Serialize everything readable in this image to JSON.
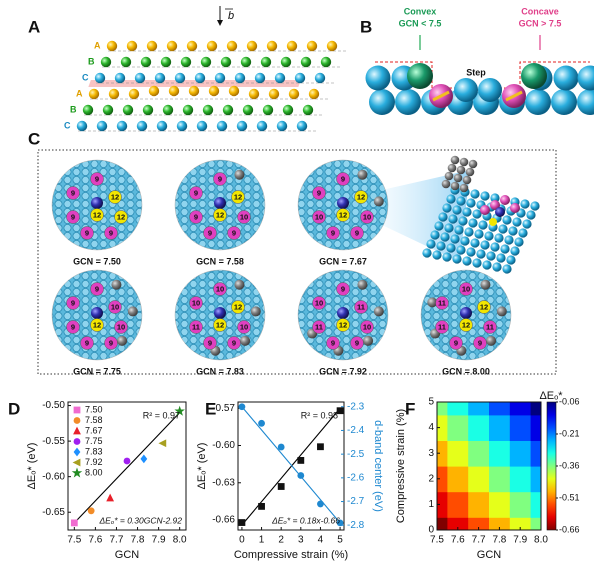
{
  "panels": {
    "A": {
      "label": "A",
      "layers": [
        "A",
        "B",
        "C",
        "A",
        "B",
        "C"
      ],
      "vector": "b"
    },
    "B": {
      "label": "B",
      "convex": "Convex",
      "convex_gcn": "GCN < 7.5",
      "concave": "Concave",
      "concave_gcn": "GCN > 7.5",
      "step": "Step"
    },
    "C": {
      "label": "C",
      "sites": [
        {
          "gcn": "GCN = 7.50",
          "numbers": [
            "9",
            "9",
            "12",
            "9",
            "12",
            "12",
            "9",
            "9"
          ]
        },
        {
          "gcn": "GCN = 7.58",
          "numbers": [
            "9",
            "9",
            "12",
            "9",
            "12",
            "10",
            "9",
            "9"
          ]
        },
        {
          "gcn": "GCN = 7.67",
          "numbers": [
            "9",
            "9",
            "12",
            "10",
            "12",
            "10",
            "9",
            "9"
          ]
        },
        {
          "gcn": "GCN = 7.75",
          "numbers": [
            "9",
            "9",
            "10",
            "9",
            "12",
            "10",
            "9",
            "9"
          ]
        },
        {
          "gcn": "GCN = 7.83",
          "numbers": [
            "10",
            "10",
            "12",
            "11",
            "12",
            "10",
            "9",
            "9"
          ]
        },
        {
          "gcn": "GCN = 7.92",
          "numbers": [
            "9",
            "10",
            "11",
            "11",
            "12",
            "10",
            "9",
            "9"
          ]
        },
        {
          "gcn": "GCN = 8.00",
          "numbers": [
            "10",
            "11",
            "12",
            "11",
            "12",
            "11",
            "9",
            "9"
          ]
        }
      ]
    },
    "D": {
      "label": "D"
    },
    "E": {
      "label": "E"
    },
    "F": {
      "label": "F"
    }
  },
  "chart_data": [
    {
      "type": "scatter",
      "xlabel": "GCN",
      "ylabel": "ΔEₒ* (eV)",
      "xlim": [
        7.47,
        8.03
      ],
      "xticks": [
        7.5,
        7.6,
        7.7,
        7.8,
        7.9,
        {
          "value": 8,
          "label": "8.0"
        }
      ],
      "ylim": [
        -0.675,
        -0.495
      ],
      "yticks": [
        -0.65,
        {
          "value": -0.6,
          "label": "-0.60"
        },
        -0.55,
        {
          "value": -0.5,
          "label": "-0.50"
        }
      ],
      "legend": "upper left",
      "series": [
        {
          "name": "7.50",
          "color": "#f06bd0",
          "marker": "square",
          "x": [
            7.5
          ],
          "values": [
            -0.665
          ]
        },
        {
          "name": "7.58",
          "color": "#f28c28",
          "marker": "circle",
          "x": [
            7.58
          ],
          "values": [
            -0.648
          ]
        },
        {
          "name": "7.67",
          "color": "#e8202a",
          "marker": "triangle",
          "x": [
            7.67
          ],
          "values": [
            -0.63
          ]
        },
        {
          "name": "7.75",
          "color": "#a020f0",
          "marker": "circle",
          "x": [
            7.75
          ],
          "values": [
            -0.578
          ]
        },
        {
          "name": "7.83",
          "color": "#1e90ff",
          "marker": "diamond",
          "x": [
            7.83
          ],
          "values": [
            -0.575
          ]
        },
        {
          "name": "7.92",
          "color": "#a8a020",
          "marker": "triangle-left",
          "x": [
            7.92
          ],
          "values": [
            -0.553
          ]
        },
        {
          "name": "8.00",
          "color": "#228b22",
          "marker": "star",
          "x": [
            8.0
          ],
          "values": [
            -0.508
          ]
        }
      ],
      "fit_lines": [
        {
          "color": "#000000",
          "x": [
            7.5,
            8.0
          ],
          "values": [
            -0.665,
            -0.51
          ]
        }
      ],
      "r_squared": "R² = 0.97",
      "fit_label": "ΔEₒ* = 0.30GCN-2.92"
    },
    {
      "type": "scatter",
      "xlabel": "Compressive strain (%)",
      "ylabel": "ΔEₒ* (eV)",
      "y2label": "d-band center (eV)",
      "y2color": "#1e88d0",
      "xlim": [
        -0.2,
        5.2
      ],
      "xticks": [
        0,
        1,
        2,
        3,
        4,
        5
      ],
      "ylim": [
        -0.668,
        -0.565
      ],
      "yticks": [
        -0.57,
        {
          "value": -0.6,
          "label": "-0.60"
        },
        -0.63,
        -0.66
      ],
      "y2lim": [
        -2.82,
        -2.28
      ],
      "y2ticks": [
        -2.3,
        -2.4,
        -2.5,
        -2.6,
        -2.7,
        -2.8
      ],
      "series": [
        {
          "color": "#111111",
          "marker": "square",
          "x": [
            0,
            1,
            2,
            3,
            4,
            5
          ],
          "values": [
            -0.662,
            -0.649,
            -0.633,
            -0.612,
            -0.601,
            -0.572
          ]
        },
        {
          "color": "#1e88d0",
          "marker": "circle",
          "axis": "y2",
          "x": [
            0,
            1,
            2,
            3,
            4,
            5
          ],
          "values": [
            -2.3,
            -2.37,
            -2.47,
            -2.59,
            -2.71,
            -2.79
          ]
        }
      ],
      "fit_lines": [
        {
          "color": "#000000",
          "x": [
            0,
            5
          ],
          "values": [
            -0.664,
            -0.57
          ]
        },
        {
          "color": "#1e88d0",
          "axis": "y2",
          "x": [
            0,
            5
          ],
          "values": [
            -2.3,
            -2.79
          ]
        }
      ],
      "r_squared": "R² = 0.98",
      "fit_label": "ΔEₒ* = 0.18x-0.66"
    },
    {
      "type": "heatmap",
      "xlabel": "GCN",
      "ylabel": "Compressive strain (%)",
      "colorbar_label": "ΔEₒ*",
      "colormap": "jet_r",
      "xlim": [
        7.5,
        8.0
      ],
      "xticks": [
        7.5,
        7.6,
        7.7,
        7.8,
        7.9,
        {
          "value": 8,
          "label": "8.0"
        }
      ],
      "ylim": [
        0,
        5
      ],
      "yticks": [
        0,
        1,
        2,
        3,
        4,
        5
      ],
      "x": [
        7.5,
        7.6,
        7.7,
        7.8,
        7.9,
        8.0
      ],
      "y": [
        0,
        1,
        2,
        3,
        4,
        5
      ],
      "z": [
        [
          -0.66,
          -0.6,
          -0.54,
          -0.48,
          -0.42,
          -0.36
        ],
        [
          -0.6,
          -0.54,
          -0.48,
          -0.42,
          -0.36,
          -0.3
        ],
        [
          -0.54,
          -0.48,
          -0.42,
          -0.36,
          -0.3,
          -0.24
        ],
        [
          -0.48,
          -0.42,
          -0.36,
          -0.3,
          -0.24,
          -0.18
        ],
        [
          -0.42,
          -0.36,
          -0.3,
          -0.24,
          -0.18,
          -0.12
        ],
        [
          -0.36,
          -0.3,
          -0.24,
          -0.18,
          -0.12,
          -0.06
        ]
      ],
      "clim": [
        -0.66,
        -0.06
      ],
      "cticks": [
        -0.06,
        -0.21,
        -0.36,
        -0.51,
        -0.66
      ]
    }
  ]
}
